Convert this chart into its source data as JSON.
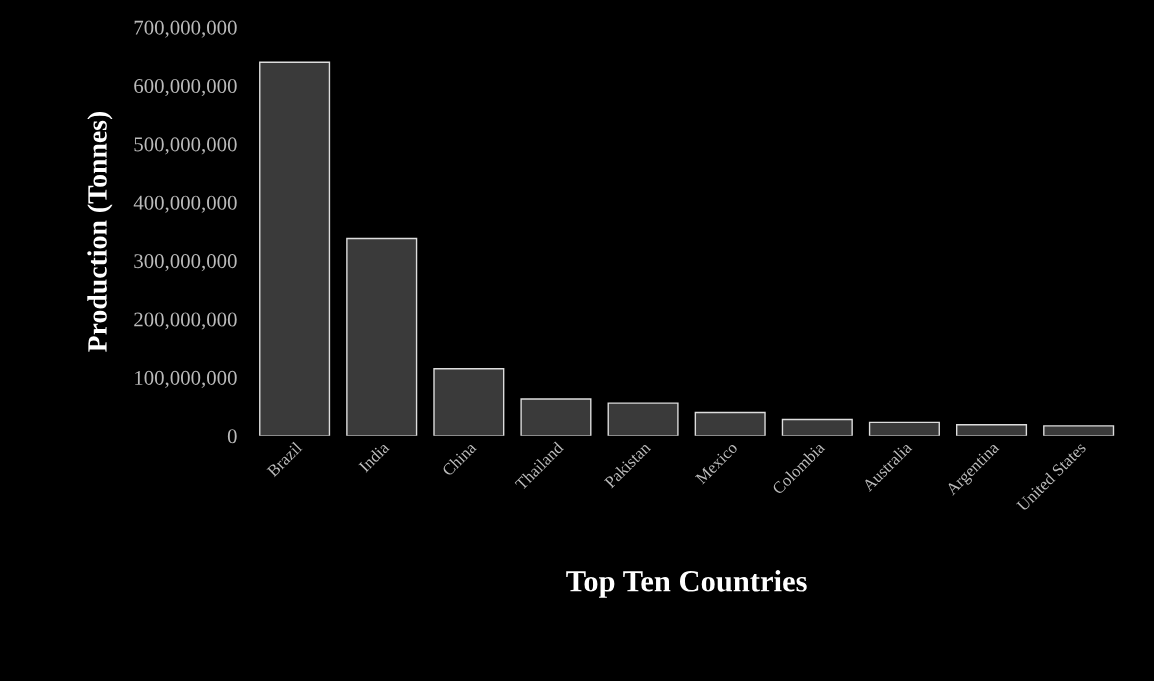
{
  "chart_data": {
    "type": "bar",
    "xlabel": "Top Ten Countries",
    "ylabel": "Production (Tonnes)",
    "categories": [
      "Brazil",
      "India",
      "China",
      "Thailand",
      "Pakistan",
      "Mexico",
      "Colombia",
      "Australia",
      "Argentina",
      "United States"
    ],
    "values": [
      640000000,
      338000000,
      115000000,
      63000000,
      56000000,
      40000000,
      28000000,
      23000000,
      19000000,
      17000000
    ],
    "color": "#3a3a3a",
    "ylim": [
      0,
      700000000
    ],
    "yticks": [
      {
        "value": 0,
        "label": "0"
      },
      {
        "value": 100000000,
        "label": "100,000,000"
      },
      {
        "value": 200000000,
        "label": "200,000,000"
      },
      {
        "value": 300000000,
        "label": "300,000,000"
      },
      {
        "value": 400000000,
        "label": "400,000,000"
      },
      {
        "value": 500000000,
        "label": "500,000,000"
      },
      {
        "value": 600000000,
        "label": "600,000,000"
      },
      {
        "value": 700000000,
        "label": "700,000,000"
      }
    ],
    "grid": false
  }
}
